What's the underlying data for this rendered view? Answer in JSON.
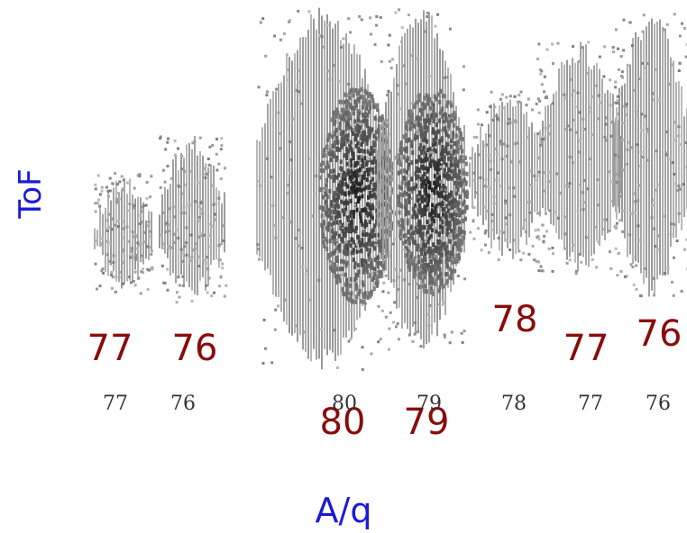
{
  "chart_data": {
    "type": "heatmap",
    "xlabel": "A/q",
    "ylabel": "ToF",
    "clusters": [
      {
        "name": "77",
        "intensity": 0.25
      },
      {
        "name": "76",
        "intensity": 0.25
      },
      {
        "name": "80",
        "intensity": 1.0
      },
      {
        "name": "79",
        "intensity": 1.0
      },
      {
        "name": "78",
        "intensity": 0.3
      },
      {
        "name": "77",
        "intensity": 0.3
      },
      {
        "name": "76",
        "intensity": 0.35
      }
    ],
    "peak_labels": [
      "77",
      "76",
      "80",
      "79",
      "78",
      "77",
      "76"
    ],
    "tick_labels": [
      "77",
      "76",
      "80",
      "79",
      "78",
      "77",
      "76"
    ]
  }
}
